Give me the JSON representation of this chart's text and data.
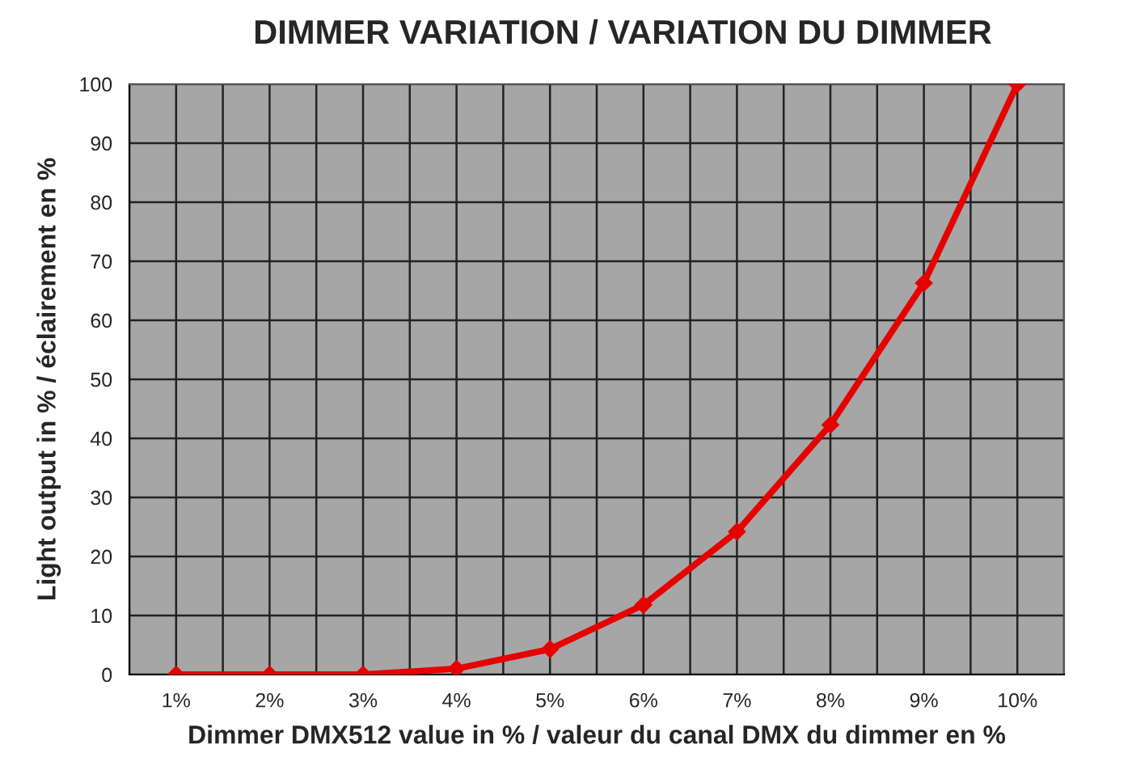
{
  "chart_data": {
    "type": "line",
    "title": "DIMMER VARIATION / VARIATION DU DIMMER",
    "xlabel": "Dimmer DMX512 value in % / valeur du canal DMX du dimmer en %",
    "ylabel": "Light output in % / éclairement en %",
    "categories": [
      "1%",
      "2%",
      "3%",
      "4%",
      "5%",
      "6%",
      "7%",
      "8%",
      "9%",
      "10%"
    ],
    "series": [
      {
        "color": "#e60000",
        "values": [
          0,
          0,
          0,
          1,
          4.3,
          11.8,
          24.2,
          42.3,
          66.3,
          100
        ]
      }
    ],
    "ylim": [
      0,
      100
    ],
    "yticks": [
      0,
      10,
      20,
      30,
      40,
      50,
      60,
      70,
      80,
      90,
      100
    ],
    "grid": true,
    "marker": "diamond",
    "line_style": "solid",
    "legend": false
  }
}
